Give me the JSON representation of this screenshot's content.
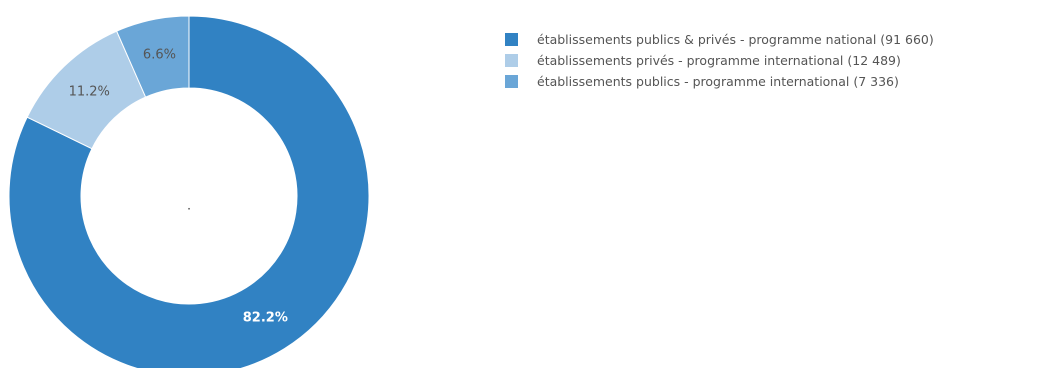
{
  "chart_data": {
    "type": "pie",
    "variant": "donut",
    "title": "",
    "center_label": ".",
    "slices": [
      {
        "label": "établissements publics & privés - programme national",
        "legend_text": "établissements publics & privés - programme national (91 660)",
        "value": 91660,
        "percent_label": "82.2%",
        "color": "#3182c3",
        "label_color": "#ffffff"
      },
      {
        "label": "établissements privés - programme international",
        "legend_text": "établissements privés - programme international (12 489)",
        "value": 12489,
        "percent_label": "11.2%",
        "color": "#aecde8",
        "label_color": "#555555"
      },
      {
        "label": "établissements publics - programme international",
        "legend_text": "établissements publics  - programme international (7 336)",
        "value": 7336,
        "percent_label": "6.6%",
        "color": "#6aa6d7",
        "label_color": "#555555"
      }
    ],
    "legend_position": "top-right"
  }
}
